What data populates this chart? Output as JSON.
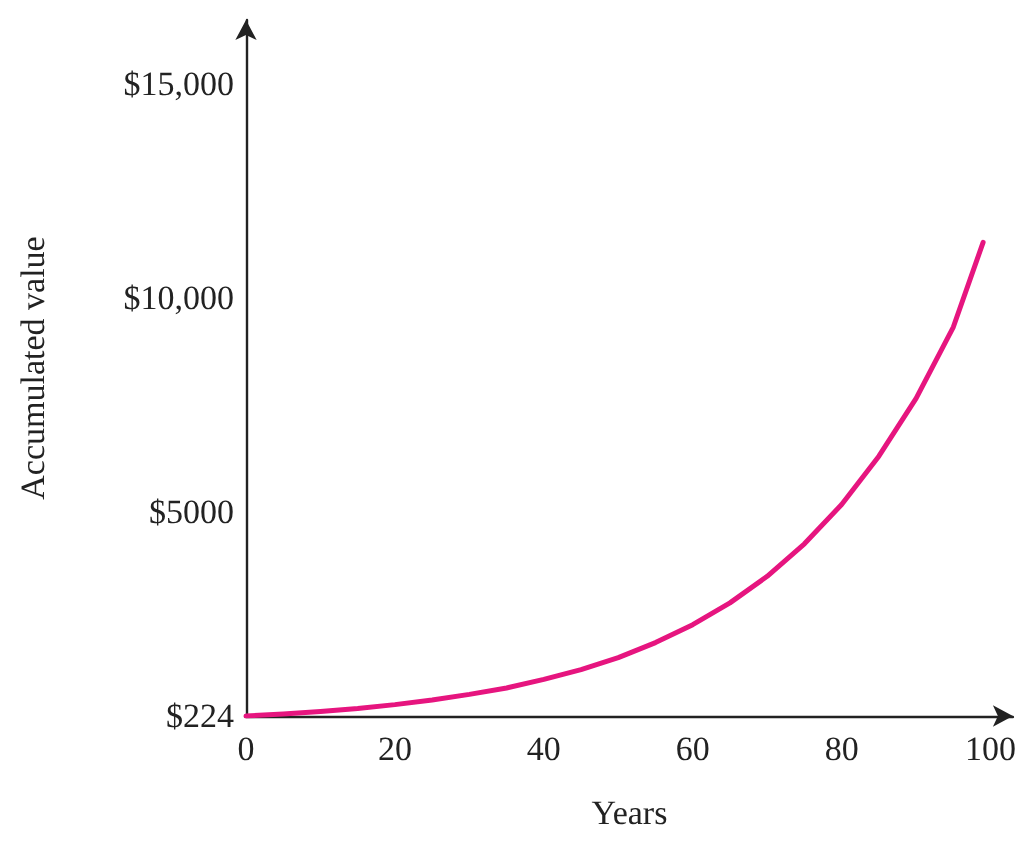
{
  "chart_data": {
    "type": "line",
    "xlabel": "Years",
    "ylabel": "Accumulated value",
    "x": [
      0,
      5,
      10,
      15,
      20,
      25,
      30,
      35,
      40,
      45,
      50,
      55,
      60,
      65,
      70,
      75,
      80,
      85,
      90,
      95,
      99
    ],
    "series": [
      {
        "color": "#e6157f",
        "values": [
          224,
          270,
          330,
          400,
          490,
          600,
          730,
          880,
          1080,
          1310,
          1590,
          1940,
          2360,
          2870,
          3490,
          4250,
          5170,
          6300,
          7650,
          9320,
          11300
        ]
      }
    ],
    "xlim": [
      0,
      103
    ],
    "xticks": [
      0,
      20,
      40,
      60,
      80,
      100
    ],
    "ylim": [
      224,
      16500
    ],
    "yticks": [
      {
        "value": 224,
        "label": "$224"
      },
      {
        "value": 5000,
        "label": "$5000"
      },
      {
        "value": 10000,
        "label": "$10,000"
      },
      {
        "value": 15000,
        "label": "$15,000"
      }
    ],
    "grid": false,
    "marker": "none",
    "line_style": "solid"
  }
}
